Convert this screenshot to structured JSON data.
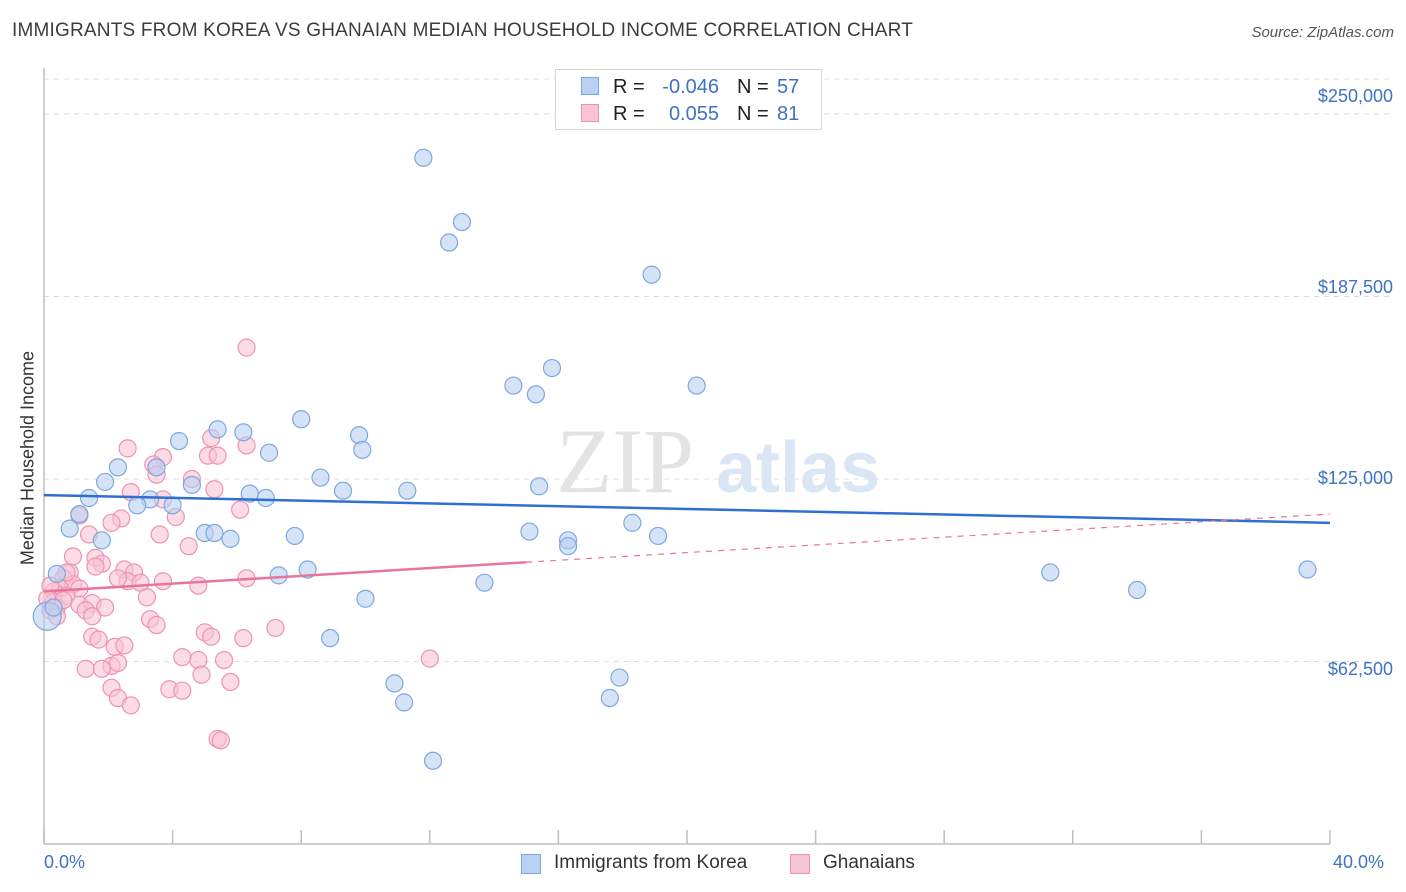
{
  "header": {
    "title": "IMMIGRANTS FROM KOREA VS GHANAIAN MEDIAN HOUSEHOLD INCOME CORRELATION CHART",
    "source": "Source: ZipAtlas.com"
  },
  "watermark": {
    "part1": "ZIP",
    "part2": "atlas"
  },
  "legend": {
    "rows": [
      {
        "r_label": "R =",
        "r_value": "-0.046",
        "n_label": "N =",
        "n_value": "57"
      },
      {
        "r_label": "R =",
        "r_value": "0.055",
        "n_label": "N =",
        "n_value": "81"
      }
    ]
  },
  "bottom_legend": {
    "series1": "Immigrants from Korea",
    "series2": "Ghanaians"
  },
  "chart_data": {
    "type": "scatter",
    "title": "IMMIGRANTS FROM KOREA VS GHANAIAN MEDIAN HOUSEHOLD INCOME CORRELATION CHART",
    "xlabel": "",
    "ylabel": "Median Household Income",
    "xlim": [
      0,
      40
    ],
    "ylim": [
      0,
      262000
    ],
    "x_tick_labels": [
      "0.0%",
      "40.0%"
    ],
    "y_ticks": [
      62500,
      125000,
      187500,
      250000
    ],
    "y_tick_labels": [
      "$62,500",
      "$125,000",
      "$187,500",
      "$250,000"
    ],
    "grid": true,
    "legend_position": "top-center",
    "colors": {
      "korea_fill": "#b9d1f2",
      "korea_stroke": "#7ea7e0",
      "korea_line": "#2f6fd0",
      "ghana_fill": "#f8c3d4",
      "ghana_stroke": "#ee92b1",
      "ghana_line": "#e8749c",
      "axis_text": "#3d72c4",
      "grid": "#dcdcdc"
    },
    "series": [
      {
        "name": "Immigrants from Korea",
        "r": -0.046,
        "n": 57,
        "trend": {
          "x": [
            0,
            40
          ],
          "y": [
            119500,
            110000
          ],
          "style": "solid"
        },
        "points": [
          [
            11.8,
            235000
          ],
          [
            13.0,
            213000
          ],
          [
            12.6,
            206000
          ],
          [
            18.9,
            195000
          ],
          [
            15.8,
            163000
          ],
          [
            14.6,
            157000
          ],
          [
            15.3,
            154000
          ],
          [
            20.3,
            157000
          ],
          [
            8.0,
            145500
          ],
          [
            4.2,
            138000
          ],
          [
            5.4,
            142000
          ],
          [
            6.2,
            141000
          ],
          [
            9.8,
            140000
          ],
          [
            9.9,
            135000
          ],
          [
            7.0,
            134000
          ],
          [
            2.3,
            129000
          ],
          [
            3.5,
            129000
          ],
          [
            1.9,
            124000
          ],
          [
            4.6,
            123000
          ],
          [
            8.6,
            125500
          ],
          [
            9.3,
            121000
          ],
          [
            11.3,
            121000
          ],
          [
            6.4,
            120000
          ],
          [
            15.4,
            122500
          ],
          [
            6.9,
            118500
          ],
          [
            1.4,
            118500
          ],
          [
            3.3,
            118000
          ],
          [
            2.9,
            116000
          ],
          [
            4.0,
            116000
          ],
          [
            1.1,
            113000
          ],
          [
            0.8,
            108000
          ],
          [
            18.3,
            110000
          ],
          [
            5.0,
            106500
          ],
          [
            5.3,
            106500
          ],
          [
            5.8,
            104500
          ],
          [
            7.8,
            105500
          ],
          [
            15.1,
            107000
          ],
          [
            16.3,
            104000
          ],
          [
            16.3,
            102000
          ],
          [
            19.1,
            105500
          ],
          [
            1.8,
            104000
          ],
          [
            8.2,
            94000
          ],
          [
            7.3,
            92000
          ],
          [
            13.7,
            89500
          ],
          [
            0.4,
            92500
          ],
          [
            31.3,
            93000
          ],
          [
            39.3,
            94000
          ],
          [
            34.0,
            87000
          ],
          [
            10.0,
            84000
          ],
          [
            8.9,
            70500
          ],
          [
            10.9,
            55000
          ],
          [
            11.2,
            48500
          ],
          [
            17.9,
            57000
          ],
          [
            17.6,
            50000
          ],
          [
            12.1,
            28500
          ],
          [
            0.1,
            78000
          ],
          [
            0.3,
            81000
          ]
        ]
      },
      {
        "name": "Ghanaians",
        "r": 0.055,
        "n": 81,
        "trend": {
          "x": [
            0,
            15
          ],
          "y": [
            86500,
            96500
          ],
          "style": "solid",
          "dashed_extension_to": [
            40,
            113000
          ]
        },
        "points": [
          [
            6.3,
            170000
          ],
          [
            5.2,
            139000
          ],
          [
            6.3,
            136500
          ],
          [
            3.7,
            132500
          ],
          [
            5.1,
            133000
          ],
          [
            5.4,
            133000
          ],
          [
            2.6,
            135500
          ],
          [
            3.4,
            130000
          ],
          [
            3.5,
            126500
          ],
          [
            4.6,
            125000
          ],
          [
            5.3,
            121500
          ],
          [
            2.7,
            120500
          ],
          [
            3.7,
            118000
          ],
          [
            4.1,
            112000
          ],
          [
            2.4,
            111500
          ],
          [
            6.1,
            114500
          ],
          [
            1.1,
            112500
          ],
          [
            2.1,
            110000
          ],
          [
            1.4,
            106000
          ],
          [
            3.6,
            106000
          ],
          [
            4.5,
            102000
          ],
          [
            1.6,
            98000
          ],
          [
            1.8,
            96000
          ],
          [
            2.5,
            94000
          ],
          [
            2.8,
            93000
          ],
          [
            1.6,
            95000
          ],
          [
            0.8,
            93000
          ],
          [
            0.6,
            91000
          ],
          [
            0.9,
            89000
          ],
          [
            1.1,
            87500
          ],
          [
            0.5,
            87500
          ],
          [
            0.3,
            86500
          ],
          [
            0.7,
            85000
          ],
          [
            0.3,
            83000
          ],
          [
            0.4,
            81000
          ],
          [
            0.2,
            80000
          ],
          [
            0.6,
            83500
          ],
          [
            1.1,
            82000
          ],
          [
            1.5,
            82500
          ],
          [
            1.3,
            80000
          ],
          [
            1.9,
            81000
          ],
          [
            1.5,
            78000
          ],
          [
            0.4,
            78000
          ],
          [
            2.6,
            90000
          ],
          [
            2.3,
            91000
          ],
          [
            3.0,
            89500
          ],
          [
            3.7,
            90000
          ],
          [
            4.8,
            88500
          ],
          [
            6.3,
            91000
          ],
          [
            3.3,
            77000
          ],
          [
            3.5,
            75000
          ],
          [
            1.5,
            71000
          ],
          [
            1.7,
            70000
          ],
          [
            2.2,
            67500
          ],
          [
            2.5,
            68000
          ],
          [
            5.0,
            72500
          ],
          [
            5.2,
            71000
          ],
          [
            6.2,
            70500
          ],
          [
            7.2,
            74000
          ],
          [
            4.8,
            63000
          ],
          [
            5.6,
            63000
          ],
          [
            4.3,
            64000
          ],
          [
            2.1,
            61000
          ],
          [
            2.3,
            62000
          ],
          [
            1.3,
            60000
          ],
          [
            1.8,
            60000
          ],
          [
            4.9,
            58000
          ],
          [
            5.8,
            55500
          ],
          [
            2.1,
            53500
          ],
          [
            2.3,
            50000
          ],
          [
            2.7,
            47500
          ],
          [
            3.9,
            53000
          ],
          [
            4.3,
            52500
          ],
          [
            12.0,
            63500
          ],
          [
            5.4,
            36000
          ],
          [
            5.5,
            35500
          ],
          [
            0.9,
            98500
          ],
          [
            0.7,
            93000
          ],
          [
            0.2,
            88500
          ],
          [
            0.1,
            84000
          ],
          [
            3.2,
            84500
          ]
        ]
      }
    ]
  }
}
